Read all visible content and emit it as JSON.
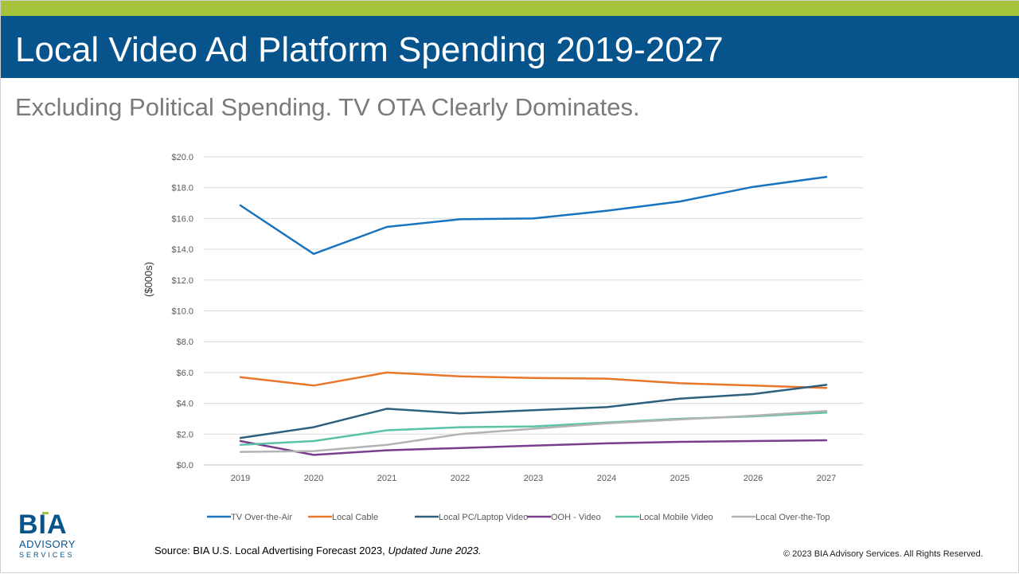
{
  "header": {
    "title": "Local Video Ad Platform Spending 2019-2027",
    "subtitle": "Excluding Political Spending. TV OTA Clearly Dominates."
  },
  "footer": {
    "source_prefix": "Source: BIA U.S. Local Advertising Forecast 2023, ",
    "source_italic": "Updated June 2023.",
    "copyright": "© 2023 BIA Advisory Services. All Rights Reserved."
  },
  "logo": {
    "main": "BIA",
    "line2": "ADVISORY",
    "line3": "SERVICES"
  },
  "colors": {
    "title_bar": "#07548d",
    "top_stripe": "#a4c33a"
  },
  "chart_data": {
    "type": "line",
    "title": "",
    "xlabel": "",
    "ylabel": "($000s)",
    "ylim": [
      0,
      20
    ],
    "y_ticks": [
      "$0.0",
      "$2.0",
      "$4.0",
      "$6.0",
      "$8.0",
      "$10.0",
      "$12.0",
      "$14.0",
      "$16.0",
      "$18.0",
      "$20.0"
    ],
    "categories": [
      "2019",
      "2020",
      "2021",
      "2022",
      "2023",
      "2024",
      "2025",
      "2026",
      "2027"
    ],
    "grid": true,
    "legend_position": "bottom",
    "series": [
      {
        "name": "TV Over-the-Air",
        "color": "#1874bf",
        "values": [
          16.85,
          13.7,
          15.45,
          15.95,
          16.0,
          16.5,
          17.1,
          18.05,
          18.7
        ]
      },
      {
        "name": "Local Cable",
        "color": "#e8762b",
        "values": [
          5.7,
          5.15,
          6.0,
          5.75,
          5.65,
          5.6,
          5.3,
          5.15,
          5.0
        ]
      },
      {
        "name": "Local PC/Laptop Video",
        "color": "#2e5f7e",
        "values": [
          1.75,
          2.45,
          3.65,
          3.35,
          3.55,
          3.75,
          4.3,
          4.6,
          5.2
        ]
      },
      {
        "name": "OOH - Video",
        "color": "#7b3d8e",
        "values": [
          1.55,
          0.65,
          0.95,
          1.1,
          1.25,
          1.4,
          1.5,
          1.55,
          1.6
        ]
      },
      {
        "name": "Local Mobile Video",
        "color": "#5ac3a8",
        "values": [
          1.3,
          1.55,
          2.25,
          2.45,
          2.5,
          2.75,
          3.0,
          3.15,
          3.4
        ]
      },
      {
        "name": "Local Over-the-Top",
        "color": "#b3b3b3",
        "values": [
          0.85,
          0.9,
          1.3,
          2.0,
          2.35,
          2.7,
          2.95,
          3.2,
          3.5
        ]
      }
    ]
  }
}
